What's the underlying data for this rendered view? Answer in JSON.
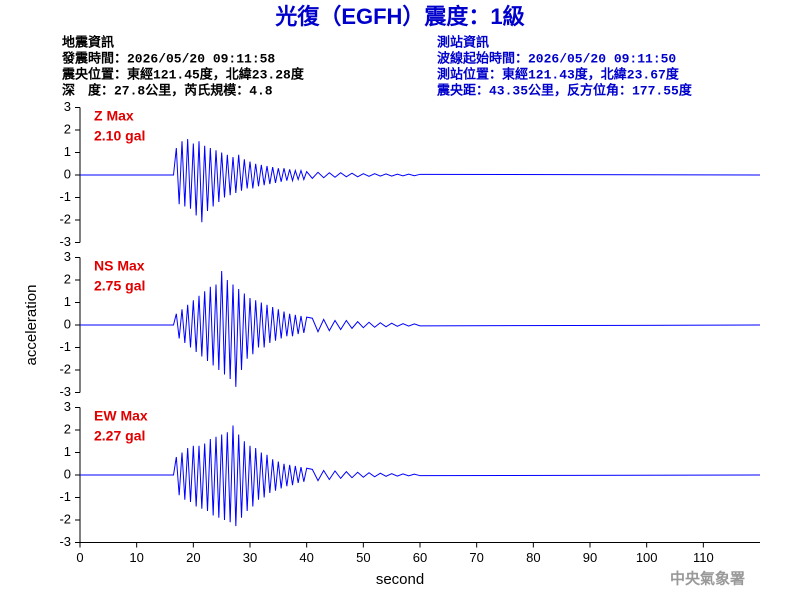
{
  "header": {
    "title": "光復（EGFH）震度：1級",
    "left": [
      "地震資訊",
      "發震時間：2026/05/20 09:11:58",
      "震央位置：東經121.45度，北緯23.28度",
      "深　度：27.8公里，芮氏規模：4.8"
    ],
    "right": [
      "測站資訊",
      "波線起始時間：2026/05/20 09:11:50",
      "測站位置：東經121.43度，北緯23.67度",
      "震央距：43.35公里，反方位角：177.55度"
    ],
    "footer": "中央氣象署"
  },
  "chart_data": [
    {
      "type": "line",
      "label": "Z Max",
      "max_label": "2.10 gal",
      "color": "#0000ff",
      "xlim": [
        0,
        120
      ],
      "ylim": [
        -3,
        3
      ],
      "yticks": [
        -3,
        -2,
        -1,
        0,
        1,
        2,
        3
      ],
      "x": [
        0,
        16.5,
        17,
        17.5,
        18,
        18.5,
        19,
        19.5,
        20,
        20.5,
        21,
        21.5,
        22,
        22.5,
        23,
        23.5,
        24,
        24.5,
        25,
        25.5,
        26,
        26.5,
        27,
        27.5,
        28,
        28.5,
        29,
        29.5,
        30,
        30.5,
        31,
        31.5,
        32,
        32.5,
        33,
        33.5,
        34,
        34.5,
        35,
        35.5,
        36,
        36.5,
        37,
        37.5,
        38,
        38.5,
        39,
        39.5,
        40,
        41,
        42,
        43,
        44,
        45,
        46,
        47,
        48,
        49,
        50,
        51,
        52,
        53,
        54,
        55,
        56,
        57,
        58,
        59,
        60,
        120
      ],
      "values": [
        0,
        0,
        1.2,
        -1.3,
        1.5,
        -1.4,
        1.6,
        -1.5,
        1.4,
        -1.8,
        1.5,
        -2.1,
        1.3,
        -1.6,
        1.2,
        -1.4,
        1.1,
        -1.2,
        1.0,
        -1.0,
        0.9,
        -0.9,
        0.8,
        -0.8,
        0.9,
        -0.7,
        0.7,
        -0.6,
        0.6,
        -0.6,
        0.5,
        -0.5,
        0.45,
        -0.45,
        0.4,
        -0.4,
        0.35,
        -0.35,
        0.3,
        -0.3,
        0.3,
        -0.25,
        0.25,
        -0.25,
        0.2,
        -0.2,
        0.2,
        -0.2,
        0.15,
        -0.15,
        0.12,
        -0.12,
        0.1,
        -0.1,
        0.1,
        -0.08,
        0.08,
        -0.08,
        0.06,
        -0.06,
        0.06,
        -0.05,
        0.05,
        -0.05,
        0.04,
        -0.04,
        0.04,
        -0.03,
        0.03,
        0
      ]
    },
    {
      "type": "line",
      "label": "NS Max",
      "max_label": "2.75 gal",
      "color": "#0000ff",
      "ylabel": "acceleration",
      "xlim": [
        0,
        120
      ],
      "ylim": [
        -3,
        3
      ],
      "yticks": [
        -3,
        -2,
        -1,
        0,
        1,
        2,
        3
      ],
      "x": [
        0,
        16.5,
        17,
        17.5,
        18,
        18.5,
        19,
        19.5,
        20,
        20.5,
        21,
        21.5,
        22,
        22.5,
        23,
        23.5,
        24,
        24.5,
        25,
        25.5,
        26,
        26.5,
        27,
        27.5,
        28,
        28.5,
        29,
        29.5,
        30,
        30.5,
        31,
        31.5,
        32,
        32.5,
        33,
        33.5,
        34,
        34.5,
        35,
        35.5,
        36,
        36.5,
        37,
        37.5,
        38,
        38.5,
        39,
        39.5,
        40,
        41,
        42,
        43,
        44,
        45,
        46,
        47,
        48,
        49,
        50,
        51,
        52,
        53,
        54,
        55,
        56,
        57,
        58,
        59,
        60,
        120
      ],
      "values": [
        0,
        0,
        0.5,
        -0.6,
        0.7,
        -0.8,
        0.9,
        -1.0,
        1.1,
        -1.2,
        1.3,
        -1.4,
        1.5,
        -1.6,
        1.7,
        -1.8,
        1.8,
        -2.0,
        2.4,
        -2.2,
        2.0,
        -2.4,
        1.8,
        -2.75,
        1.6,
        -2.0,
        1.4,
        -1.5,
        1.2,
        -1.3,
        1.1,
        -1.0,
        1.0,
        -1.0,
        0.9,
        -0.8,
        0.8,
        -0.7,
        0.7,
        -0.6,
        0.6,
        -0.5,
        0.5,
        -0.5,
        0.45,
        -0.4,
        0.4,
        -0.35,
        0.35,
        0.3,
        -0.3,
        0.25,
        -0.25,
        0.2,
        -0.2,
        0.2,
        -0.15,
        0.15,
        -0.12,
        0.12,
        -0.1,
        0.1,
        -0.08,
        0.08,
        -0.06,
        0.06,
        -0.05,
        0.05,
        -0.04,
        0
      ]
    },
    {
      "type": "line",
      "label": "EW Max",
      "max_label": "2.27 gal",
      "color": "#0000ff",
      "xlabel": "second",
      "xlim": [
        0,
        120
      ],
      "xticks": [
        0,
        10,
        20,
        30,
        40,
        50,
        60,
        70,
        80,
        90,
        100,
        110
      ],
      "ylim": [
        -3,
        3
      ],
      "yticks": [
        -3,
        -2,
        -1,
        0,
        1,
        2,
        3
      ],
      "x": [
        0,
        16.5,
        17,
        17.5,
        18,
        18.5,
        19,
        19.5,
        20,
        20.5,
        21,
        21.5,
        22,
        22.5,
        23,
        23.5,
        24,
        24.5,
        25,
        25.5,
        26,
        26.5,
        27,
        27.5,
        28,
        28.5,
        29,
        29.5,
        30,
        30.5,
        31,
        31.5,
        32,
        32.5,
        33,
        33.5,
        34,
        34.5,
        35,
        35.5,
        36,
        36.5,
        37,
        37.5,
        38,
        38.5,
        39,
        39.5,
        40,
        41,
        42,
        43,
        44,
        45,
        46,
        47,
        48,
        49,
        50,
        51,
        52,
        53,
        54,
        55,
        56,
        57,
        58,
        59,
        60,
        120
      ],
      "values": [
        0,
        0,
        0.8,
        -0.9,
        1.0,
        -1.1,
        1.2,
        -1.2,
        1.3,
        -1.4,
        1.3,
        -1.5,
        1.4,
        -1.6,
        1.6,
        -1.8,
        1.7,
        -1.9,
        1.8,
        -2.0,
        1.9,
        -2.1,
        2.2,
        -2.27,
        1.8,
        -1.9,
        1.5,
        -1.6,
        1.3,
        -1.4,
        1.2,
        -1.1,
        1.0,
        -1.0,
        0.9,
        -0.8,
        0.7,
        -0.7,
        0.6,
        -0.6,
        0.5,
        -0.5,
        0.45,
        -0.45,
        0.4,
        -0.35,
        0.35,
        -0.3,
        0.3,
        0.25,
        -0.25,
        0.2,
        -0.2,
        0.18,
        -0.15,
        0.15,
        -0.12,
        0.12,
        -0.1,
        0.1,
        -0.08,
        0.08,
        -0.06,
        0.06,
        -0.05,
        0.05,
        -0.04,
        0.04,
        -0.03,
        0
      ]
    }
  ]
}
